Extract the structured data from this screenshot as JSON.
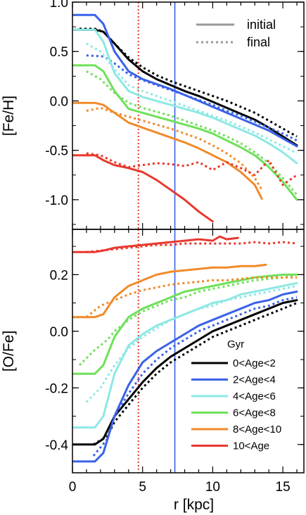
{
  "chart_data": [
    {
      "type": "line",
      "panel": "top",
      "ylabel": "[Fe/H]",
      "xlabel": "",
      "xlim": [
        0,
        16.5
      ],
      "ylim": [
        -1.3,
        1.0
      ],
      "yticks": [
        1.0,
        0.5,
        0.0,
        -0.5,
        -1.0
      ],
      "ytick_labels": [
        "1.0",
        "0.5",
        "0.0",
        "-0.5",
        "-1.0"
      ],
      "vlines": [
        {
          "x": 4.7,
          "color": "#e8382e",
          "style": "dotted"
        },
        {
          "x": 7.3,
          "color": "#3a62e8",
          "style": "solid"
        }
      ],
      "legend": {
        "position": "top-right",
        "items": [
          {
            "label": "initial",
            "style": "solid",
            "color": "#999999"
          },
          {
            "label": "final",
            "style": "dotted",
            "color": "#999999"
          }
        ]
      },
      "series": [
        {
          "color": "#000000",
          "style": "solid",
          "x": [
            0,
            1.6,
            2.2,
            3,
            4,
            5,
            6,
            7,
            8,
            9,
            10,
            11,
            12,
            13,
            14,
            15,
            16
          ],
          "y": [
            0.72,
            0.72,
            0.7,
            0.58,
            0.42,
            0.3,
            0.22,
            0.16,
            0.1,
            0.05,
            -0.01,
            -0.07,
            -0.13,
            -0.19,
            -0.27,
            -0.36,
            -0.45
          ]
        },
        {
          "color": "#000000",
          "style": "dotted",
          "x": [
            0.5,
            1.6,
            2.2,
            3,
            4,
            5,
            6,
            7,
            8,
            9,
            10,
            11,
            12,
            13,
            14,
            15,
            16
          ],
          "y": [
            0.73,
            0.73,
            0.7,
            0.58,
            0.44,
            0.34,
            0.26,
            0.2,
            0.15,
            0.1,
            0.05,
            0.0,
            -0.06,
            -0.12,
            -0.2,
            -0.28,
            -0.36
          ]
        },
        {
          "color": "#3a62e8",
          "style": "solid",
          "x": [
            0,
            1.6,
            2.2,
            3,
            4,
            5,
            6,
            7,
            8,
            9,
            10,
            11,
            12,
            13,
            14,
            15,
            16
          ],
          "y": [
            0.87,
            0.87,
            0.78,
            0.5,
            0.3,
            0.22,
            0.17,
            0.12,
            0.06,
            0.0,
            -0.06,
            -0.12,
            -0.18,
            -0.24,
            -0.3,
            -0.38,
            -0.46
          ]
        },
        {
          "color": "#3a62e8",
          "style": "dotted",
          "x": [
            1,
            2.2,
            3,
            4,
            5,
            6,
            7,
            8,
            9,
            10,
            11,
            12,
            13,
            14,
            15,
            16
          ],
          "y": [
            0.46,
            0.45,
            0.38,
            0.27,
            0.21,
            0.16,
            0.11,
            0.06,
            0.01,
            -0.04,
            -0.1,
            -0.15,
            -0.21,
            -0.27,
            -0.33,
            -0.4
          ]
        },
        {
          "color": "#8de8e4",
          "style": "solid",
          "x": [
            0,
            1.6,
            2.2,
            3,
            4,
            5,
            6,
            7,
            8,
            9,
            10,
            11,
            12,
            13,
            14,
            15,
            16
          ],
          "y": [
            0.72,
            0.72,
            0.6,
            0.28,
            0.1,
            0.04,
            0.0,
            -0.04,
            -0.08,
            -0.12,
            -0.17,
            -0.23,
            -0.29,
            -0.35,
            -0.43,
            -0.52,
            -0.63
          ]
        },
        {
          "color": "#8de8e4",
          "style": "dotted",
          "x": [
            1,
            2,
            3,
            4,
            5,
            6,
            7,
            8,
            9,
            10,
            11,
            12,
            13,
            14,
            15,
            16
          ],
          "y": [
            0.58,
            0.5,
            0.32,
            0.16,
            0.1,
            0.05,
            0.0,
            -0.05,
            -0.1,
            -0.15,
            -0.2,
            -0.26,
            -0.32,
            -0.39,
            -0.46,
            -0.53
          ]
        },
        {
          "color": "#6fe05a",
          "style": "solid",
          "x": [
            0,
            1.6,
            2.2,
            3,
            4,
            5,
            6,
            7,
            8,
            9,
            10,
            11,
            12,
            13,
            14,
            15,
            16
          ],
          "y": [
            0.36,
            0.36,
            0.3,
            0.1,
            -0.08,
            -0.12,
            -0.16,
            -0.2,
            -0.24,
            -0.28,
            -0.33,
            -0.4,
            -0.47,
            -0.55,
            -0.67,
            -0.82,
            -1.0
          ]
        },
        {
          "color": "#6fe05a",
          "style": "dotted",
          "x": [
            1,
            2,
            3,
            4,
            5,
            6,
            7,
            8,
            9,
            10,
            11,
            12,
            13,
            14,
            15,
            16
          ],
          "y": [
            0.3,
            0.22,
            0.08,
            -0.02,
            -0.07,
            -0.11,
            -0.15,
            -0.2,
            -0.25,
            -0.3,
            -0.36,
            -0.43,
            -0.52,
            -0.63,
            -0.78,
            -0.95
          ]
        },
        {
          "color": "#f08a2a",
          "style": "solid",
          "x": [
            0,
            1.6,
            2.2,
            3,
            4,
            5,
            6,
            7,
            8,
            9,
            10,
            11,
            12,
            13,
            13.5
          ],
          "y": [
            -0.02,
            -0.02,
            -0.04,
            -0.12,
            -0.22,
            -0.27,
            -0.32,
            -0.37,
            -0.42,
            -0.48,
            -0.55,
            -0.62,
            -0.72,
            -0.85,
            -0.99
          ]
        },
        {
          "color": "#f08a2a",
          "style": "dotted",
          "x": [
            1,
            2,
            3,
            4,
            5,
            6,
            7,
            8,
            9,
            10,
            11,
            12,
            13,
            13.5
          ],
          "y": [
            -0.1,
            -0.07,
            -0.12,
            -0.16,
            -0.2,
            -0.24,
            -0.28,
            -0.33,
            -0.38,
            -0.45,
            -0.53,
            -0.63,
            -0.78,
            -0.9
          ]
        },
        {
          "color": "#e8382e",
          "style": "solid",
          "x": [
            0,
            1.6,
            2.2,
            3,
            4,
            5,
            6,
            7,
            8,
            9,
            10
          ],
          "y": [
            -0.55,
            -0.55,
            -0.6,
            -0.65,
            -0.68,
            -0.72,
            -0.8,
            -0.9,
            -1.0,
            -1.12,
            -1.22
          ]
        },
        {
          "color": "#e8382e",
          "style": "dotted",
          "x": [
            1,
            2,
            3,
            4,
            5,
            6,
            7,
            8,
            9,
            10,
            11,
            12,
            13,
            14,
            15,
            16
          ],
          "y": [
            -0.53,
            -0.55,
            -0.62,
            -0.67,
            -0.65,
            -0.63,
            -0.64,
            -0.66,
            -0.62,
            -0.7,
            -0.62,
            -0.68,
            -0.75,
            -0.6,
            -0.85,
            -0.75
          ]
        }
      ]
    },
    {
      "type": "line",
      "panel": "bottom",
      "ylabel": "[O/Fe]",
      "xlabel": "r [kpc]",
      "xlim": [
        0,
        16.5
      ],
      "ylim": [
        -0.5,
        0.36
      ],
      "xticks": [
        0,
        5,
        10,
        15
      ],
      "xtick_labels": [
        "0",
        "5",
        "10",
        "15"
      ],
      "yticks": [
        0.2,
        0.0,
        -0.2,
        -0.4
      ],
      "ytick_labels": [
        "0.2",
        "0.0",
        "-0.2",
        "-0.4"
      ],
      "vlines": [
        {
          "x": 4.7,
          "color": "#e8382e",
          "style": "dotted"
        },
        {
          "x": 7.3,
          "color": "#3a62e8",
          "style": "solid"
        }
      ],
      "legend": {
        "position": "bottom-right",
        "title": "Gyr",
        "items": [
          {
            "label": "0<Age<2",
            "color": "#000000"
          },
          {
            "label": "2<Age<4",
            "color": "#3a62e8"
          },
          {
            "label": "4<Age<6",
            "color": "#8de8e4"
          },
          {
            "label": "6<Age<8",
            "color": "#6fe05a"
          },
          {
            "label": "8<Age<10",
            "color": "#f08a2a"
          },
          {
            "label": "10<Age",
            "color": "#e8382e"
          }
        ]
      },
      "series": [
        {
          "color": "#000000",
          "style": "solid",
          "x": [
            0,
            1.6,
            2.2,
            3,
            4,
            5,
            6,
            7,
            8,
            9,
            10,
            11,
            12,
            13,
            14,
            15,
            16
          ],
          "y": [
            -0.4,
            -0.4,
            -0.38,
            -0.3,
            -0.24,
            -0.18,
            -0.13,
            -0.09,
            -0.06,
            -0.03,
            0.0,
            0.02,
            0.04,
            0.06,
            0.08,
            0.1,
            0.11
          ]
        },
        {
          "color": "#000000",
          "style": "dotted",
          "x": [
            1.5,
            2.5,
            3,
            4,
            5,
            6,
            7,
            8,
            9,
            10,
            11,
            12,
            13,
            14,
            15,
            16
          ],
          "y": [
            -0.4,
            -0.37,
            -0.32,
            -0.26,
            -0.2,
            -0.15,
            -0.11,
            -0.08,
            -0.05,
            -0.02,
            0.0,
            0.02,
            0.04,
            0.06,
            0.08,
            0.1
          ]
        },
        {
          "color": "#3a62e8",
          "style": "solid",
          "x": [
            0,
            1.6,
            2.2,
            3,
            4,
            5,
            6,
            7,
            8,
            9,
            10,
            11,
            12,
            13,
            14,
            15,
            16
          ],
          "y": [
            -0.46,
            -0.46,
            -0.43,
            -0.3,
            -0.19,
            -0.11,
            -0.07,
            -0.04,
            -0.01,
            0.02,
            0.04,
            0.06,
            0.08,
            0.1,
            0.11,
            0.13,
            0.14
          ]
        },
        {
          "color": "#3a62e8",
          "style": "dotted",
          "x": [
            1.5,
            2.5,
            3,
            4,
            5,
            6,
            7,
            8,
            9,
            10,
            11,
            12,
            13,
            14,
            15,
            16
          ],
          "y": [
            -0.44,
            -0.38,
            -0.3,
            -0.22,
            -0.15,
            -0.1,
            -0.06,
            -0.03,
            0.0,
            0.02,
            0.04,
            0.06,
            0.08,
            0.09,
            0.11,
            0.12
          ]
        },
        {
          "color": "#8de8e4",
          "style": "solid",
          "x": [
            0,
            1.6,
            2.2,
            3,
            4,
            5,
            6,
            7,
            8,
            9,
            10,
            11,
            12,
            13,
            14,
            15,
            16
          ],
          "y": [
            -0.34,
            -0.34,
            -0.3,
            -0.15,
            -0.05,
            -0.01,
            0.02,
            0.04,
            0.06,
            0.08,
            0.1,
            0.11,
            0.13,
            0.14,
            0.15,
            0.16,
            0.17
          ]
        },
        {
          "color": "#8de8e4",
          "style": "dotted",
          "x": [
            1,
            2,
            3,
            4,
            5,
            6,
            7,
            8,
            9,
            10,
            11,
            12,
            13,
            14,
            15,
            16
          ],
          "y": [
            -0.25,
            -0.2,
            -0.12,
            -0.06,
            -0.02,
            0.01,
            0.04,
            0.06,
            0.08,
            0.09,
            0.11,
            0.12,
            0.13,
            0.14,
            0.15,
            0.16
          ]
        },
        {
          "color": "#6fe05a",
          "style": "solid",
          "x": [
            0,
            1.6,
            2.2,
            3,
            4,
            5,
            6,
            7,
            8,
            9,
            10,
            11,
            12,
            13,
            14,
            15,
            16
          ],
          "y": [
            -0.15,
            -0.15,
            -0.12,
            -0.02,
            0.05,
            0.08,
            0.1,
            0.12,
            0.14,
            0.15,
            0.16,
            0.17,
            0.18,
            0.19,
            0.195,
            0.2,
            0.2
          ]
        },
        {
          "color": "#6fe05a",
          "style": "dotted",
          "x": [
            0.5,
            1.5,
            2.5,
            3,
            4,
            5,
            6,
            7,
            8,
            9,
            10,
            11,
            12,
            13,
            14,
            15,
            16
          ],
          "y": [
            -0.12,
            -0.07,
            -0.03,
            0.0,
            0.04,
            0.07,
            0.09,
            0.11,
            0.12,
            0.14,
            0.15,
            0.16,
            0.17,
            0.18,
            0.185,
            0.19,
            0.2
          ]
        },
        {
          "color": "#f08a2a",
          "style": "solid",
          "x": [
            0,
            1.6,
            2.2,
            3,
            4,
            5,
            6,
            7,
            8,
            9,
            10,
            11,
            12,
            13,
            13.8
          ],
          "y": [
            0.05,
            0.05,
            0.06,
            0.12,
            0.16,
            0.18,
            0.2,
            0.21,
            0.215,
            0.22,
            0.225,
            0.225,
            0.23,
            0.23,
            0.235
          ]
        },
        {
          "color": "#f08a2a",
          "style": "dotted",
          "x": [
            1,
            2,
            3,
            4,
            5,
            6,
            7,
            8,
            9,
            10,
            11,
            12,
            13,
            14,
            15,
            16
          ],
          "y": [
            0.05,
            0.09,
            0.11,
            0.13,
            0.145,
            0.155,
            0.165,
            0.17,
            0.175,
            0.18,
            0.18,
            0.185,
            0.19,
            0.19,
            0.19,
            0.19
          ]
        },
        {
          "color": "#e8382e",
          "style": "solid",
          "x": [
            0,
            1.6,
            2.2,
            3,
            4,
            5,
            6,
            7,
            8,
            9,
            10,
            10.5,
            11,
            11.8
          ],
          "y": [
            0.28,
            0.28,
            0.285,
            0.295,
            0.3,
            0.305,
            0.31,
            0.315,
            0.32,
            0.325,
            0.32,
            0.335,
            0.325,
            0.33
          ]
        },
        {
          "color": "#e8382e",
          "style": "dotted",
          "x": [
            1,
            2,
            3,
            4,
            5,
            6,
            7,
            8,
            9,
            10,
            11,
            12,
            13,
            14,
            15,
            16
          ],
          "y": [
            0.28,
            0.285,
            0.29,
            0.295,
            0.3,
            0.305,
            0.305,
            0.31,
            0.31,
            0.31,
            0.31,
            0.31,
            0.315,
            0.31,
            0.315,
            0.31
          ]
        }
      ]
    }
  ]
}
